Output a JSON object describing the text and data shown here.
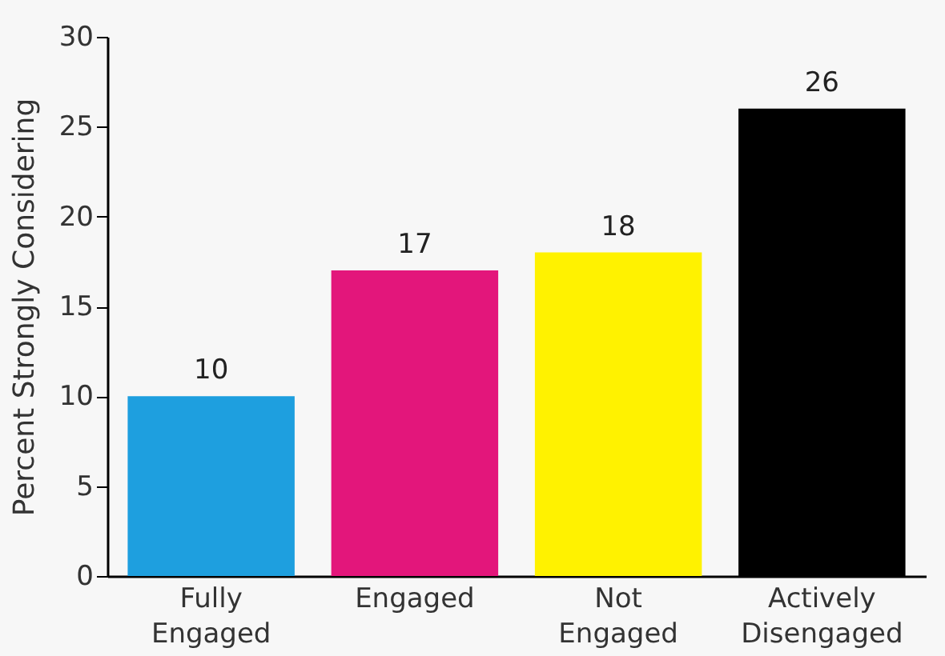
{
  "chart_data": {
    "type": "bar",
    "ylabel": "Percent Strongly Considering",
    "categories": [
      "Fully Engaged",
      "Engaged",
      "Not Engaged",
      "Actively Disengaged"
    ],
    "values": [
      10,
      17,
      18,
      26
    ],
    "colors": [
      "#1e9fdf",
      "#e3167b",
      "#fff200",
      "#000000"
    ],
    "ylim": [
      0,
      30
    ],
    "yticks": [
      0,
      5,
      10,
      15,
      20,
      25,
      30
    ],
    "grid": false,
    "data_labels": true,
    "legend": false
  }
}
